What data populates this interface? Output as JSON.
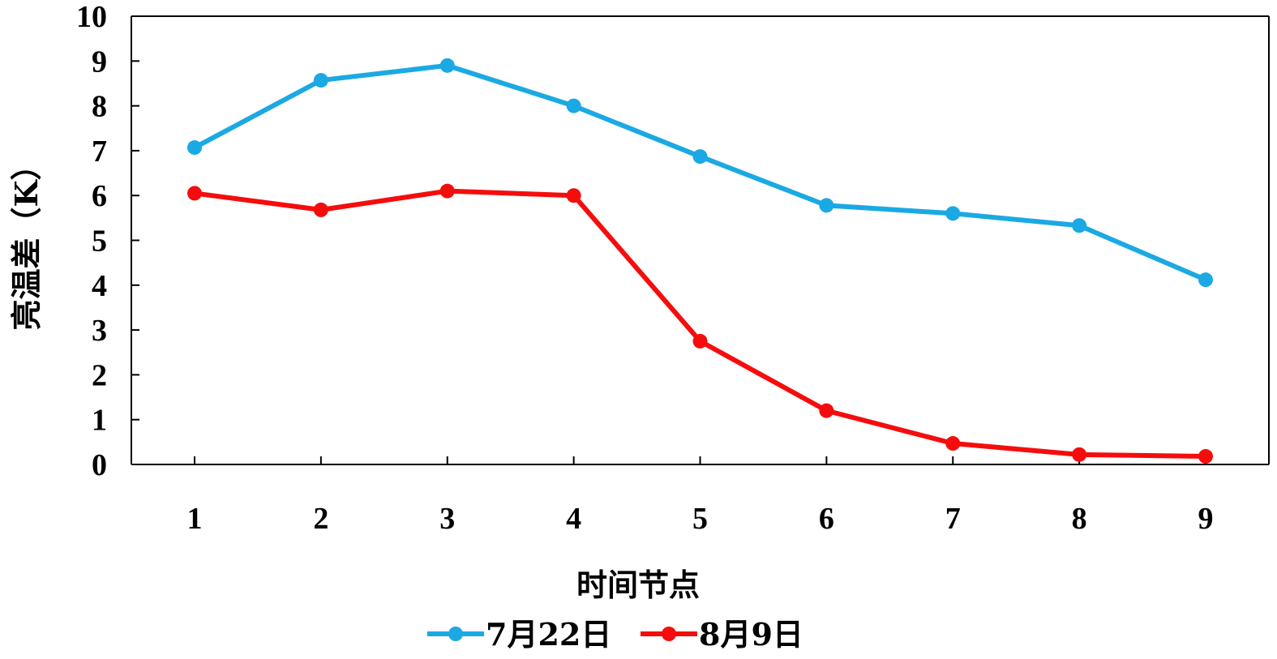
{
  "chart_data": {
    "type": "line",
    "xlabel": "时间节点",
    "ylabel": "亮温差（K）",
    "x": [
      1,
      2,
      3,
      4,
      5,
      6,
      7,
      8,
      9
    ],
    "x_tick_labels": [
      "1",
      "2",
      "3",
      "4",
      "5",
      "6",
      "7",
      "8",
      "9"
    ],
    "y_tick_labels": [
      "0",
      "1",
      "2",
      "3",
      "4",
      "5",
      "6",
      "7",
      "8",
      "9",
      "10"
    ],
    "ylim": [
      0,
      10
    ],
    "grid": false,
    "legend_position": "bottom",
    "series": [
      {
        "name": "7月22日",
        "color": "#1BA9E3",
        "values": [
          7.07,
          8.57,
          8.9,
          8.0,
          6.87,
          5.78,
          5.6,
          5.33,
          4.12
        ]
      },
      {
        "name": "8月9日",
        "color": "#F50D0D",
        "values": [
          6.05,
          5.68,
          6.1,
          6.0,
          2.75,
          1.2,
          0.47,
          0.22,
          0.18
        ]
      }
    ]
  }
}
